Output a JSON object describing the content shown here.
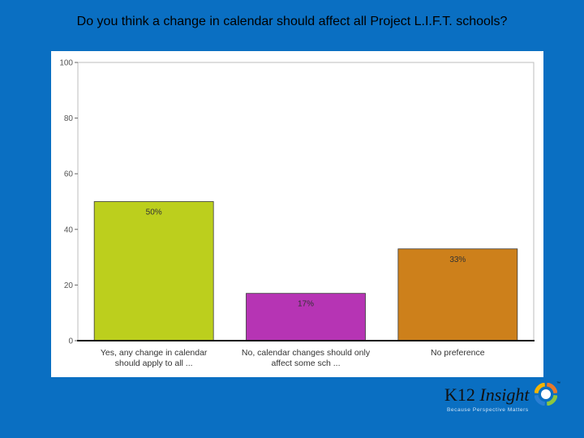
{
  "slide": {
    "title": "Do you think a change in calendar should affect all Project L.I.F.T. schools?"
  },
  "logo": {
    "brand_main": "K12",
    "brand_italic": "Insight",
    "trademark": "™",
    "tagline": "Because Perspective Matters",
    "ring_colors": [
      "#e8792b",
      "#8cc63f",
      "#2a7fd4",
      "#f4b400"
    ]
  },
  "chart_data": {
    "type": "bar",
    "title": "",
    "xlabel": "",
    "ylabel": "",
    "ylim": [
      0,
      100
    ],
    "yticks": [
      0,
      20,
      40,
      60,
      80,
      100
    ],
    "grid": false,
    "categories": [
      [
        "Yes, any change in calendar",
        "should apply to all ..."
      ],
      [
        "No, calendar changes should only",
        "affect some sch ..."
      ],
      [
        "No preference"
      ]
    ],
    "values": [
      50,
      17,
      33
    ],
    "data_labels": [
      "50%",
      "17%",
      "33%"
    ],
    "colors": [
      "#bccf1d",
      "#b634b4",
      "#cd801b"
    ]
  }
}
